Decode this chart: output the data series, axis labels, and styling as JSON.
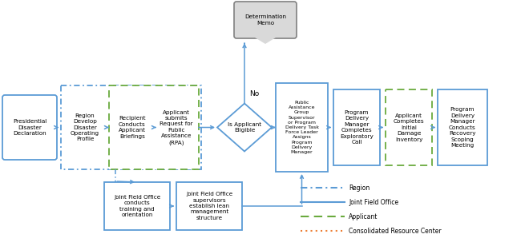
{
  "bg_color": "#ffffff",
  "text_color": "#000000",
  "blue": "#5b9bd5",
  "green": "#6aaa3e",
  "orange": "#ed7d31",
  "gray": "#808080",
  "gray_fill": "#d9d9d9",
  "font_size": 5.2,
  "legend_items": [
    {
      "label": "Region",
      "color": "#5b9bd5",
      "style": "dashdot"
    },
    {
      "label": "Joint Field Office",
      "color": "#5b9bd5",
      "style": "solid"
    },
    {
      "label": "Applicant",
      "color": "#6aaa3e",
      "style": "dashed"
    },
    {
      "label": "Consolidated Resource Center",
      "color": "#ed7d31",
      "style": "dotted"
    }
  ]
}
